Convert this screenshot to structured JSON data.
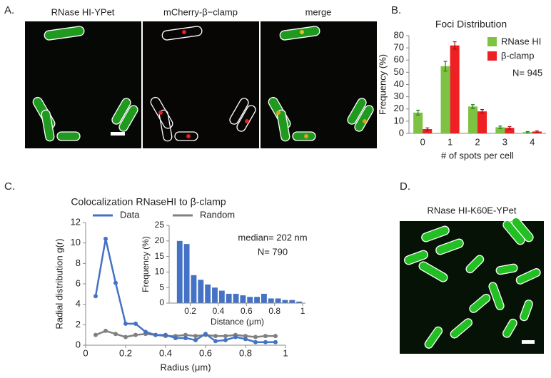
{
  "panels": {
    "A": {
      "label": "A.",
      "titles": [
        "RNase HI-YPet",
        "mCherry-β−clamp",
        "merge"
      ]
    },
    "B": {
      "label": "B."
    },
    "C": {
      "label": "C."
    },
    "D": {
      "label": "D.",
      "title": "RNase HI-K60E-YPet"
    }
  },
  "chart_data": [
    {
      "type": "bar",
      "title": "Foci Distribution",
      "xlabel": "# of spots per cell",
      "ylabel": "Frequency (%)",
      "annotation": "N= 945",
      "legend": "upper right",
      "categories": [
        "0",
        "1",
        "2",
        "3",
        "4"
      ],
      "series": [
        {
          "name": "RNase HI",
          "color": "#7dc242",
          "values": [
            17,
            55,
            22,
            5,
            1
          ],
          "errors": [
            2,
            4,
            1.5,
            1,
            0.5
          ]
        },
        {
          "name": "β-clamp",
          "color": "#ee2024",
          "values": [
            3.5,
            72,
            18,
            4.5,
            1.5
          ],
          "errors": [
            1,
            3,
            1.5,
            1,
            0.5
          ]
        }
      ],
      "ylim": [
        0,
        80
      ],
      "yticks": [
        0,
        10,
        20,
        30,
        40,
        50,
        60,
        70,
        80
      ]
    },
    {
      "type": "line",
      "title": "Colocalization RNaseHI to β-clamp",
      "xlabel": "Radius (μm)",
      "ylabel": "Radial distribution g(r)",
      "legend": "top",
      "x": [
        0.05,
        0.1,
        0.15,
        0.2,
        0.25,
        0.3,
        0.35,
        0.4,
        0.45,
        0.5,
        0.55,
        0.6,
        0.65,
        0.7,
        0.75,
        0.8,
        0.85,
        0.9,
        0.95
      ],
      "series": [
        {
          "name": "Data",
          "color": "#4472c4",
          "values": [
            4.8,
            10.4,
            6.1,
            2.1,
            2.1,
            1.3,
            1.0,
            1.0,
            0.7,
            0.7,
            0.5,
            1.1,
            0.4,
            0.5,
            0.8,
            0.6,
            0.3,
            0.3,
            0.3
          ]
        },
        {
          "name": "Random",
          "color": "#808080",
          "values": [
            1.0,
            1.4,
            1.1,
            0.8,
            1.0,
            1.1,
            1.0,
            0.9,
            0.9,
            1.0,
            0.9,
            1.0,
            0.9,
            0.9,
            1.0,
            0.9,
            0.8,
            0.9,
            0.9
          ]
        }
      ],
      "xlim": [
        0,
        1
      ],
      "xticks": [
        0,
        0.2,
        0.4,
        0.6,
        0.8,
        1
      ],
      "ylim": [
        0,
        12
      ],
      "yticks": [
        0,
        2,
        4,
        6,
        8,
        10,
        12
      ]
    },
    {
      "type": "histogram",
      "xlabel": "Distance (μm)",
      "ylabel": "Frequency (%)",
      "annotations": [
        "median= 202 nm",
        "N= 790"
      ],
      "color": "#4472c4",
      "bins": [
        0.1,
        0.15,
        0.2,
        0.25,
        0.3,
        0.35,
        0.4,
        0.45,
        0.5,
        0.55,
        0.6,
        0.65,
        0.7,
        0.75,
        0.8,
        0.85,
        0.9,
        0.95,
        1.0
      ],
      "values": [
        20,
        19,
        9,
        7.5,
        6,
        5,
        4,
        3,
        3,
        2.5,
        2,
        2,
        3,
        1.5,
        1.5,
        1,
        1,
        0.5
      ],
      "xlim": [
        0.05,
        1.02
      ],
      "xticks": [
        0.2,
        0.4,
        0.6,
        0.8,
        1
      ],
      "ylim": [
        0,
        25
      ],
      "yticks": [
        0,
        5,
        10,
        15,
        20,
        25
      ]
    }
  ]
}
